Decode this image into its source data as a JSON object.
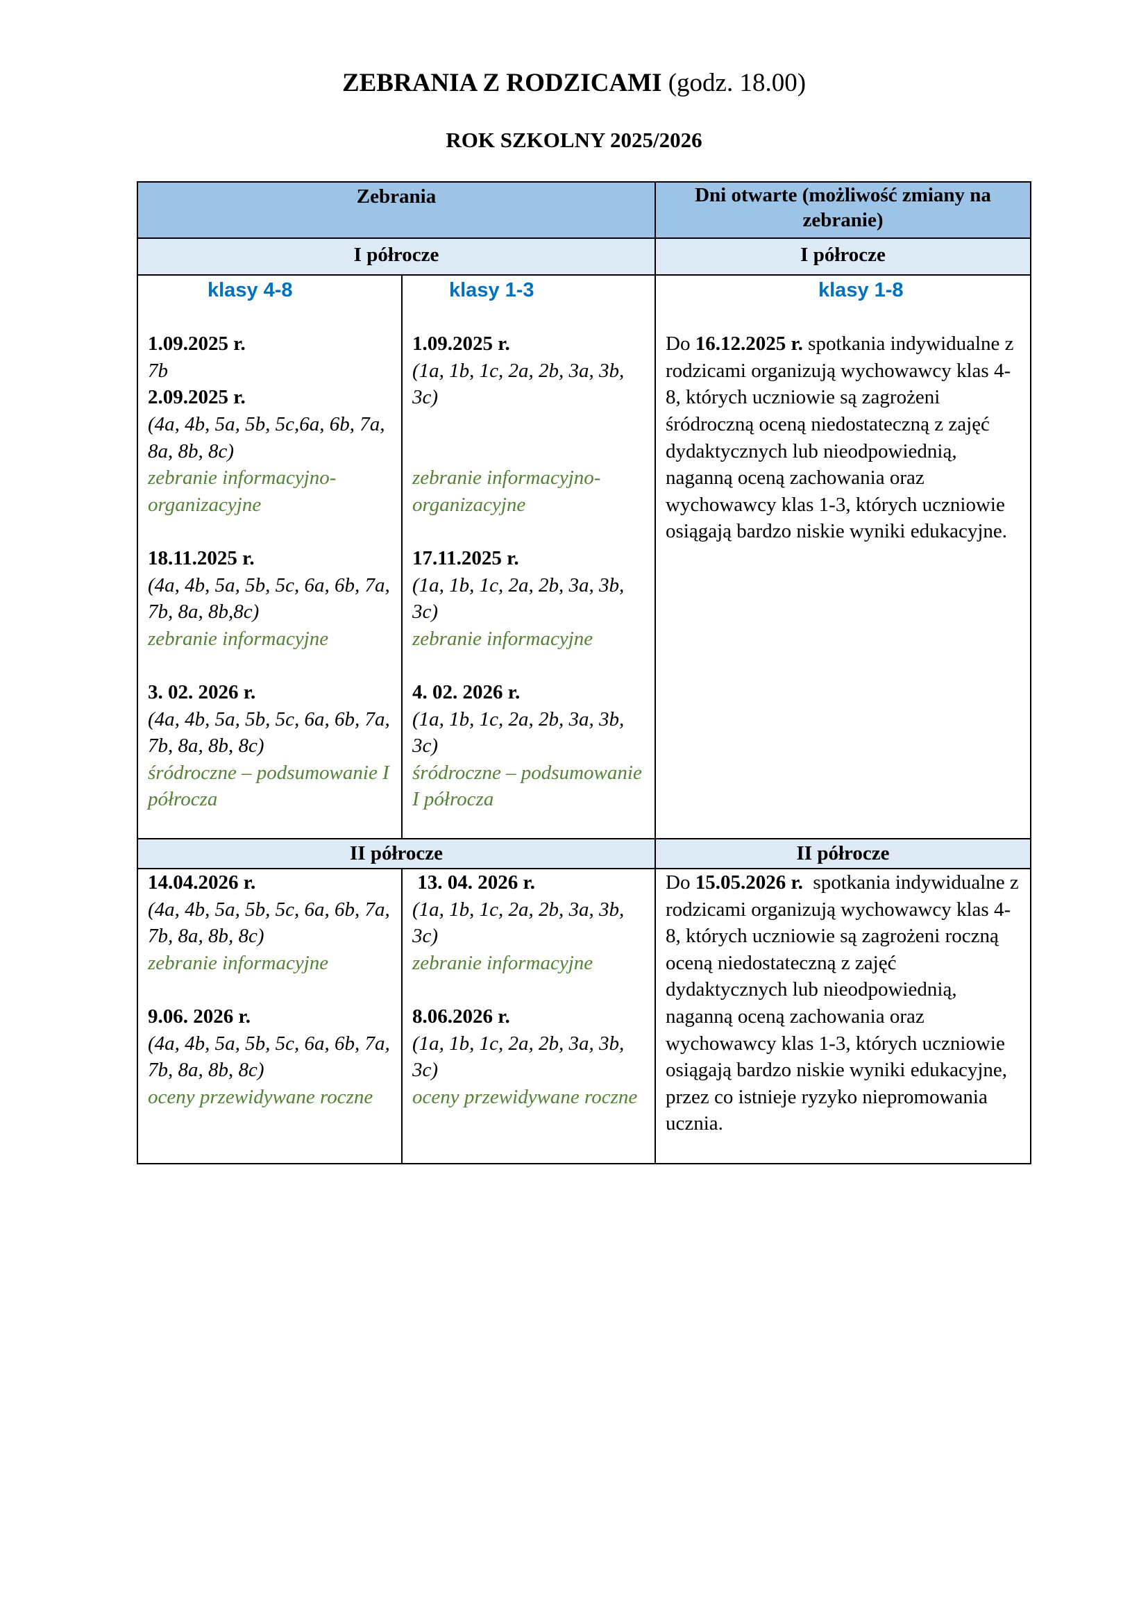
{
  "title": {
    "bold": "ZEBRANIA Z RODZICAMI",
    "normal": " (godz. 18.00)"
  },
  "subtitle": "ROK SZKOLNY 2025/2026",
  "colors": {
    "header_bg": "#9dc3e6",
    "subheader_bg": "#deeaf6",
    "klasy": "#0070c0",
    "note": "#538135"
  },
  "table": {
    "header_left": "Zebrania",
    "header_right": "Dni otwarte (możliwość zmiany na zebranie)",
    "half1_left": "I półrocze",
    "half1_right": "I półrocze",
    "half2_left": "II półrocze",
    "half2_right": "II półrocze",
    "half1": {
      "col1": {
        "heading": "klasy 4-8",
        "entries": [
          {
            "type": "spacer"
          },
          {
            "type": "date",
            "text": "1.09.2025 r."
          },
          {
            "type": "cls",
            "text": "7b"
          },
          {
            "type": "date",
            "text": "2.09.2025 r."
          },
          {
            "type": "cls",
            "text": "(4a, 4b, 5a, 5b, 5c,6a, 6b, 7a, 8a, 8b, 8c)"
          },
          {
            "type": "note",
            "text": "zebranie informacyjno-organizacyjne"
          },
          {
            "type": "spacer"
          },
          {
            "type": "date",
            "text": "18.11.2025 r."
          },
          {
            "type": "cls",
            "text": "(4a, 4b, 5a, 5b, 5c, 6a, 6b, 7a, 7b, 8a, 8b,8c)"
          },
          {
            "type": "note",
            "text": "zebranie informacyjne"
          },
          {
            "type": "spacer"
          },
          {
            "type": "date",
            "text": "3. 02. 2026 r."
          },
          {
            "type": "cls",
            "text": "(4a, 4b, 5a, 5b, 5c, 6a, 6b, 7a, 7b, 8a, 8b, 8c)"
          },
          {
            "type": "note",
            "text": "śródroczne – podsumowanie I półrocza"
          }
        ]
      },
      "col2": {
        "heading": "klasy 1-3",
        "entries": [
          {
            "type": "spacer"
          },
          {
            "type": "date",
            "text": "1.09.2025 r."
          },
          {
            "type": "cls",
            "text": "(1a, 1b, 1c, 2a, 2b, 3a, 3b, 3c)"
          },
          {
            "type": "spacer"
          },
          {
            "type": "spacer"
          },
          {
            "type": "note",
            "text": "zebranie informacyjno-organizacyjne"
          },
          {
            "type": "spacer"
          },
          {
            "type": "date",
            "text": "17.11.2025 r."
          },
          {
            "type": "cls",
            "text": "(1a, 1b, 1c, 2a, 2b, 3a, 3b, 3c)"
          },
          {
            "type": "note",
            "text": "zebranie informacyjne"
          },
          {
            "type": "spacer"
          },
          {
            "type": "date",
            "text": "4. 02. 2026 r."
          },
          {
            "type": "cls",
            "text": "(1a, 1b, 1c, 2a, 2b, 3a, 3b, 3c)"
          },
          {
            "type": "note",
            "text": "śródroczne – podsumowanie I półrocza"
          }
        ]
      },
      "col3": {
        "heading": "klasy 1-8",
        "prefix": "Do ",
        "date": "16.12.2025 r.",
        "text": " spotkania indywidualne z rodzicami organizują wychowawcy klas 4-8, których uczniowie są zagrożeni śródroczną oceną niedostateczną z zajęć dydaktycznych lub nieodpowiednią, naganną oceną zachowania oraz wychowawcy klas 1-3, których uczniowie osiągają bardzo niskie wyniki edukacyjne."
      }
    },
    "half2": {
      "col1": {
        "entries": [
          {
            "type": "date",
            "text": "14.04.2026 r."
          },
          {
            "type": "cls",
            "text": "(4a, 4b, 5a, 5b, 5c, 6a, 6b, 7a, 7b, 8a, 8b, 8c)"
          },
          {
            "type": "note",
            "text": "zebranie informacyjne"
          },
          {
            "type": "spacer"
          },
          {
            "type": "date",
            "text": "9.06. 2026 r."
          },
          {
            "type": "cls",
            "text": "(4a, 4b, 5a, 5b, 5c, 6a, 6b, 7a, 7b, 8a, 8b, 8c)"
          },
          {
            "type": "note",
            "text": "oceny przewidywane roczne"
          }
        ]
      },
      "col2": {
        "entries": [
          {
            "type": "date",
            "text": " 13. 04. 2026 r."
          },
          {
            "type": "cls",
            "text": "(1a, 1b, 1c, 2a, 2b, 3a, 3b, 3c)"
          },
          {
            "type": "note",
            "text": "zebranie informacyjne"
          },
          {
            "type": "spacer"
          },
          {
            "type": "date",
            "text": "8.06.2026 r."
          },
          {
            "type": "cls",
            "text": "(1a, 1b, 1c, 2a, 2b, 3a, 3b, 3c)"
          },
          {
            "type": "note",
            "text": "oceny przewidywane roczne"
          }
        ]
      },
      "col3": {
        "prefix": "Do ",
        "date": "15.05.2026 r.",
        "text": "  spotkania indywidualne z rodzicami organizują wychowawcy klas 4-8, których uczniowie są zagrożeni roczną oceną niedostateczną z zajęć dydaktycznych lub nieodpowiednią, naganną oceną zachowania oraz wychowawcy klas 1-3, których uczniowie osiągają bardzo niskie wyniki edukacyjne, przez co istnieje ryzyko niepromowania ucznia."
      }
    }
  }
}
